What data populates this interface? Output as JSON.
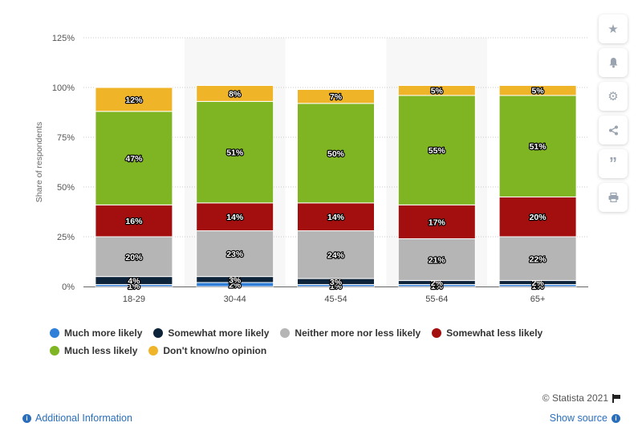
{
  "chart_data": {
    "type": "bar",
    "stacked": true,
    "ylabel": "Share of respondents",
    "y_ticks": [
      "0%",
      "25%",
      "50%",
      "75%",
      "100%",
      "125%"
    ],
    "ylim": [
      0,
      125
    ],
    "categories": [
      "18-29",
      "30-44",
      "45-54",
      "55-64",
      "65+"
    ],
    "series": [
      {
        "name": "Much more likely",
        "color": "#2f7ed8",
        "values": [
          1,
          2,
          1,
          1,
          1
        ],
        "labels": [
          "1%",
          "2%",
          "1%",
          "1%",
          "1%"
        ]
      },
      {
        "name": "Somewhat more likely",
        "color": "#0d233a",
        "values": [
          4,
          3,
          3,
          2,
          2
        ],
        "labels": [
          "4%",
          "3%",
          "3%",
          "2%",
          "2%"
        ]
      },
      {
        "name": "Neither more nor less likely",
        "color": "#b5b5b5",
        "values": [
          20,
          23,
          24,
          21,
          22
        ],
        "labels": [
          "20%",
          "23%",
          "24%",
          "21%",
          "22%"
        ]
      },
      {
        "name": "Somewhat less likely",
        "color": "#a30e0e",
        "values": [
          16,
          14,
          14,
          17,
          20
        ],
        "labels": [
          "16%",
          "14%",
          "14%",
          "17%",
          "20%"
        ]
      },
      {
        "name": "Much less likely",
        "color": "#7fb522",
        "values": [
          47,
          51,
          50,
          55,
          51
        ],
        "labels": [
          "47%",
          "51%",
          "50%",
          "55%",
          "51%"
        ]
      },
      {
        "name": "Don't know/no opinion",
        "color": "#f0b429",
        "values": [
          12,
          8,
          7,
          5,
          5
        ],
        "labels": [
          "12%",
          "8%",
          "7%",
          "5%",
          "5%"
        ]
      }
    ],
    "grid": true,
    "legend_position": "bottom"
  },
  "footer": {
    "copyright": "© Statista 2021",
    "additional_info": "Additional Information",
    "show_source": "Show source"
  },
  "sidebar_icons": [
    "star-icon",
    "bell-icon",
    "gear-icon",
    "share-icon",
    "quote-icon",
    "print-icon"
  ]
}
